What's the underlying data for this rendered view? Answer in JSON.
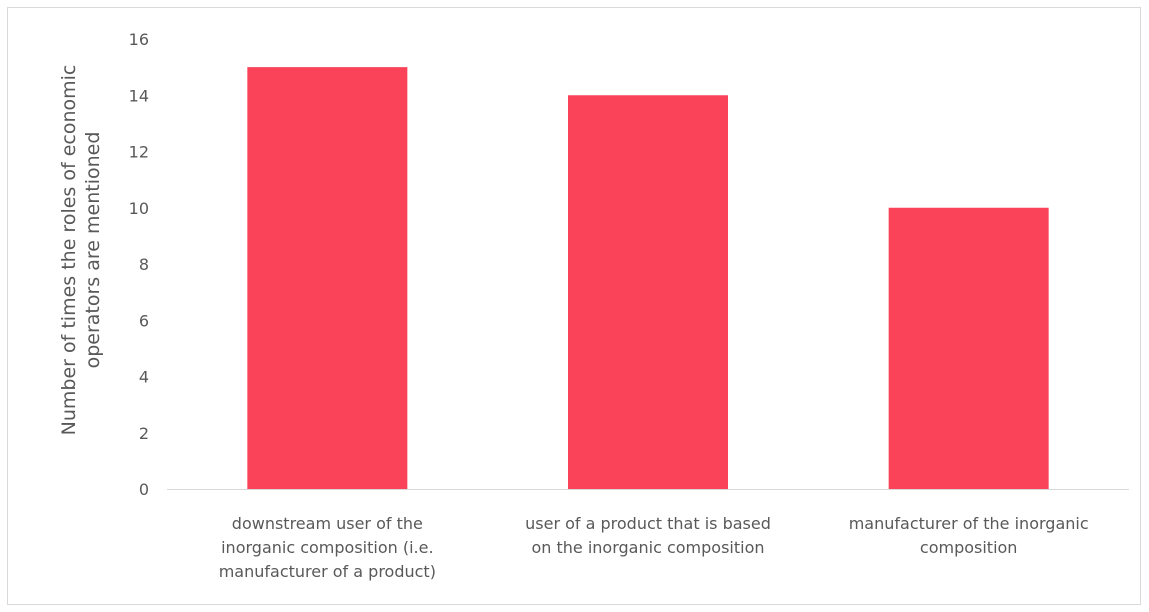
{
  "chart_data": {
    "type": "bar",
    "categories": [
      [
        "downstream user of the",
        "inorganic composition (i.e.",
        "manufacturer of a product)"
      ],
      [
        "user of a product that is based",
        "on the inorganic composition"
      ],
      [
        "manufacturer of the inorganic",
        "composition"
      ]
    ],
    "values": [
      15,
      14,
      10
    ],
    "title": "",
    "xlabel": "",
    "ylabel": [
      "Number of times the roles of economic",
      "operators are mentioned"
    ],
    "ylim": [
      0,
      16
    ],
    "yticks": [
      0,
      2,
      4,
      6,
      8,
      10,
      12,
      14,
      16
    ],
    "grid": false,
    "legend": "none",
    "colors": {
      "bar": "#fa4359",
      "axis": "#d9d9d9",
      "text": "#595959"
    }
  }
}
